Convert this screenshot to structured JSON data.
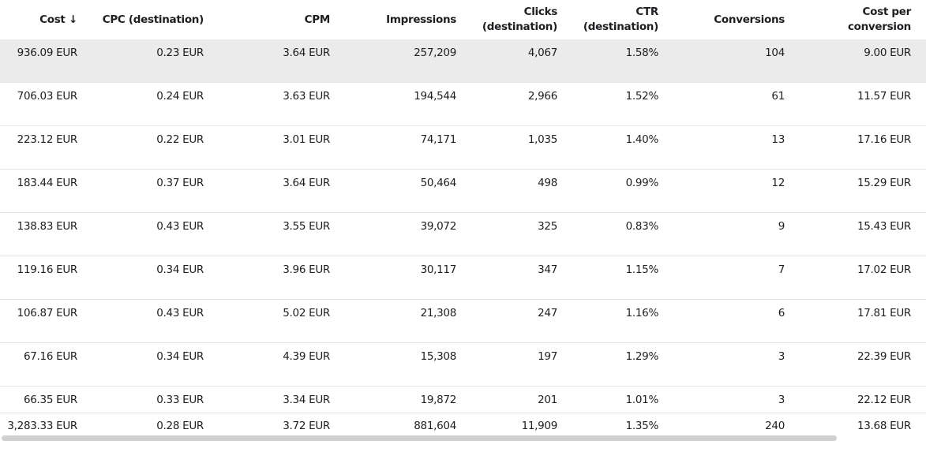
{
  "table": {
    "headers": [
      "Cost ↓",
      "CPC (destination)",
      "CPM",
      "Impressions",
      "Clicks (destination)",
      "CTR (destination)",
      "Conversions",
      "Cost per conversion"
    ],
    "rows": [
      [
        "936.09 EUR",
        "0.23 EUR",
        "3.64 EUR",
        "257,209",
        "4,067",
        "1.58%",
        "104",
        "9.00 EUR"
      ],
      [
        "706.03 EUR",
        "0.24 EUR",
        "3.63 EUR",
        "194,544",
        "2,966",
        "1.52%",
        "61",
        "11.57 EUR"
      ],
      [
        "223.12 EUR",
        "0.22 EUR",
        "3.01 EUR",
        "74,171",
        "1,035",
        "1.40%",
        "13",
        "17.16 EUR"
      ],
      [
        "183.44 EUR",
        "0.37 EUR",
        "3.64 EUR",
        "50,464",
        "498",
        "0.99%",
        "12",
        "15.29 EUR"
      ],
      [
        "138.83 EUR",
        "0.43 EUR",
        "3.55 EUR",
        "39,072",
        "325",
        "0.83%",
        "9",
        "15.43 EUR"
      ],
      [
        "119.16 EUR",
        "0.34 EUR",
        "3.96 EUR",
        "30,117",
        "347",
        "1.15%",
        "7",
        "17.02 EUR"
      ],
      [
        "106.87 EUR",
        "0.43 EUR",
        "5.02 EUR",
        "21,308",
        "247",
        "1.16%",
        "6",
        "17.81 EUR"
      ],
      [
        "67.16 EUR",
        "0.34 EUR",
        "4.39 EUR",
        "15,308",
        "197",
        "1.29%",
        "3",
        "22.39 EUR"
      ],
      [
        "66.35 EUR",
        "0.33 EUR",
        "3.34 EUR",
        "19,872",
        "201",
        "1.01%",
        "3",
        "22.12 EUR"
      ]
    ],
    "totals": [
      "3,283.33 EUR",
      "0.28 EUR",
      "3.72 EUR",
      "881,604",
      "11,909",
      "1.35%",
      "240",
      "13.68 EUR"
    ]
  }
}
